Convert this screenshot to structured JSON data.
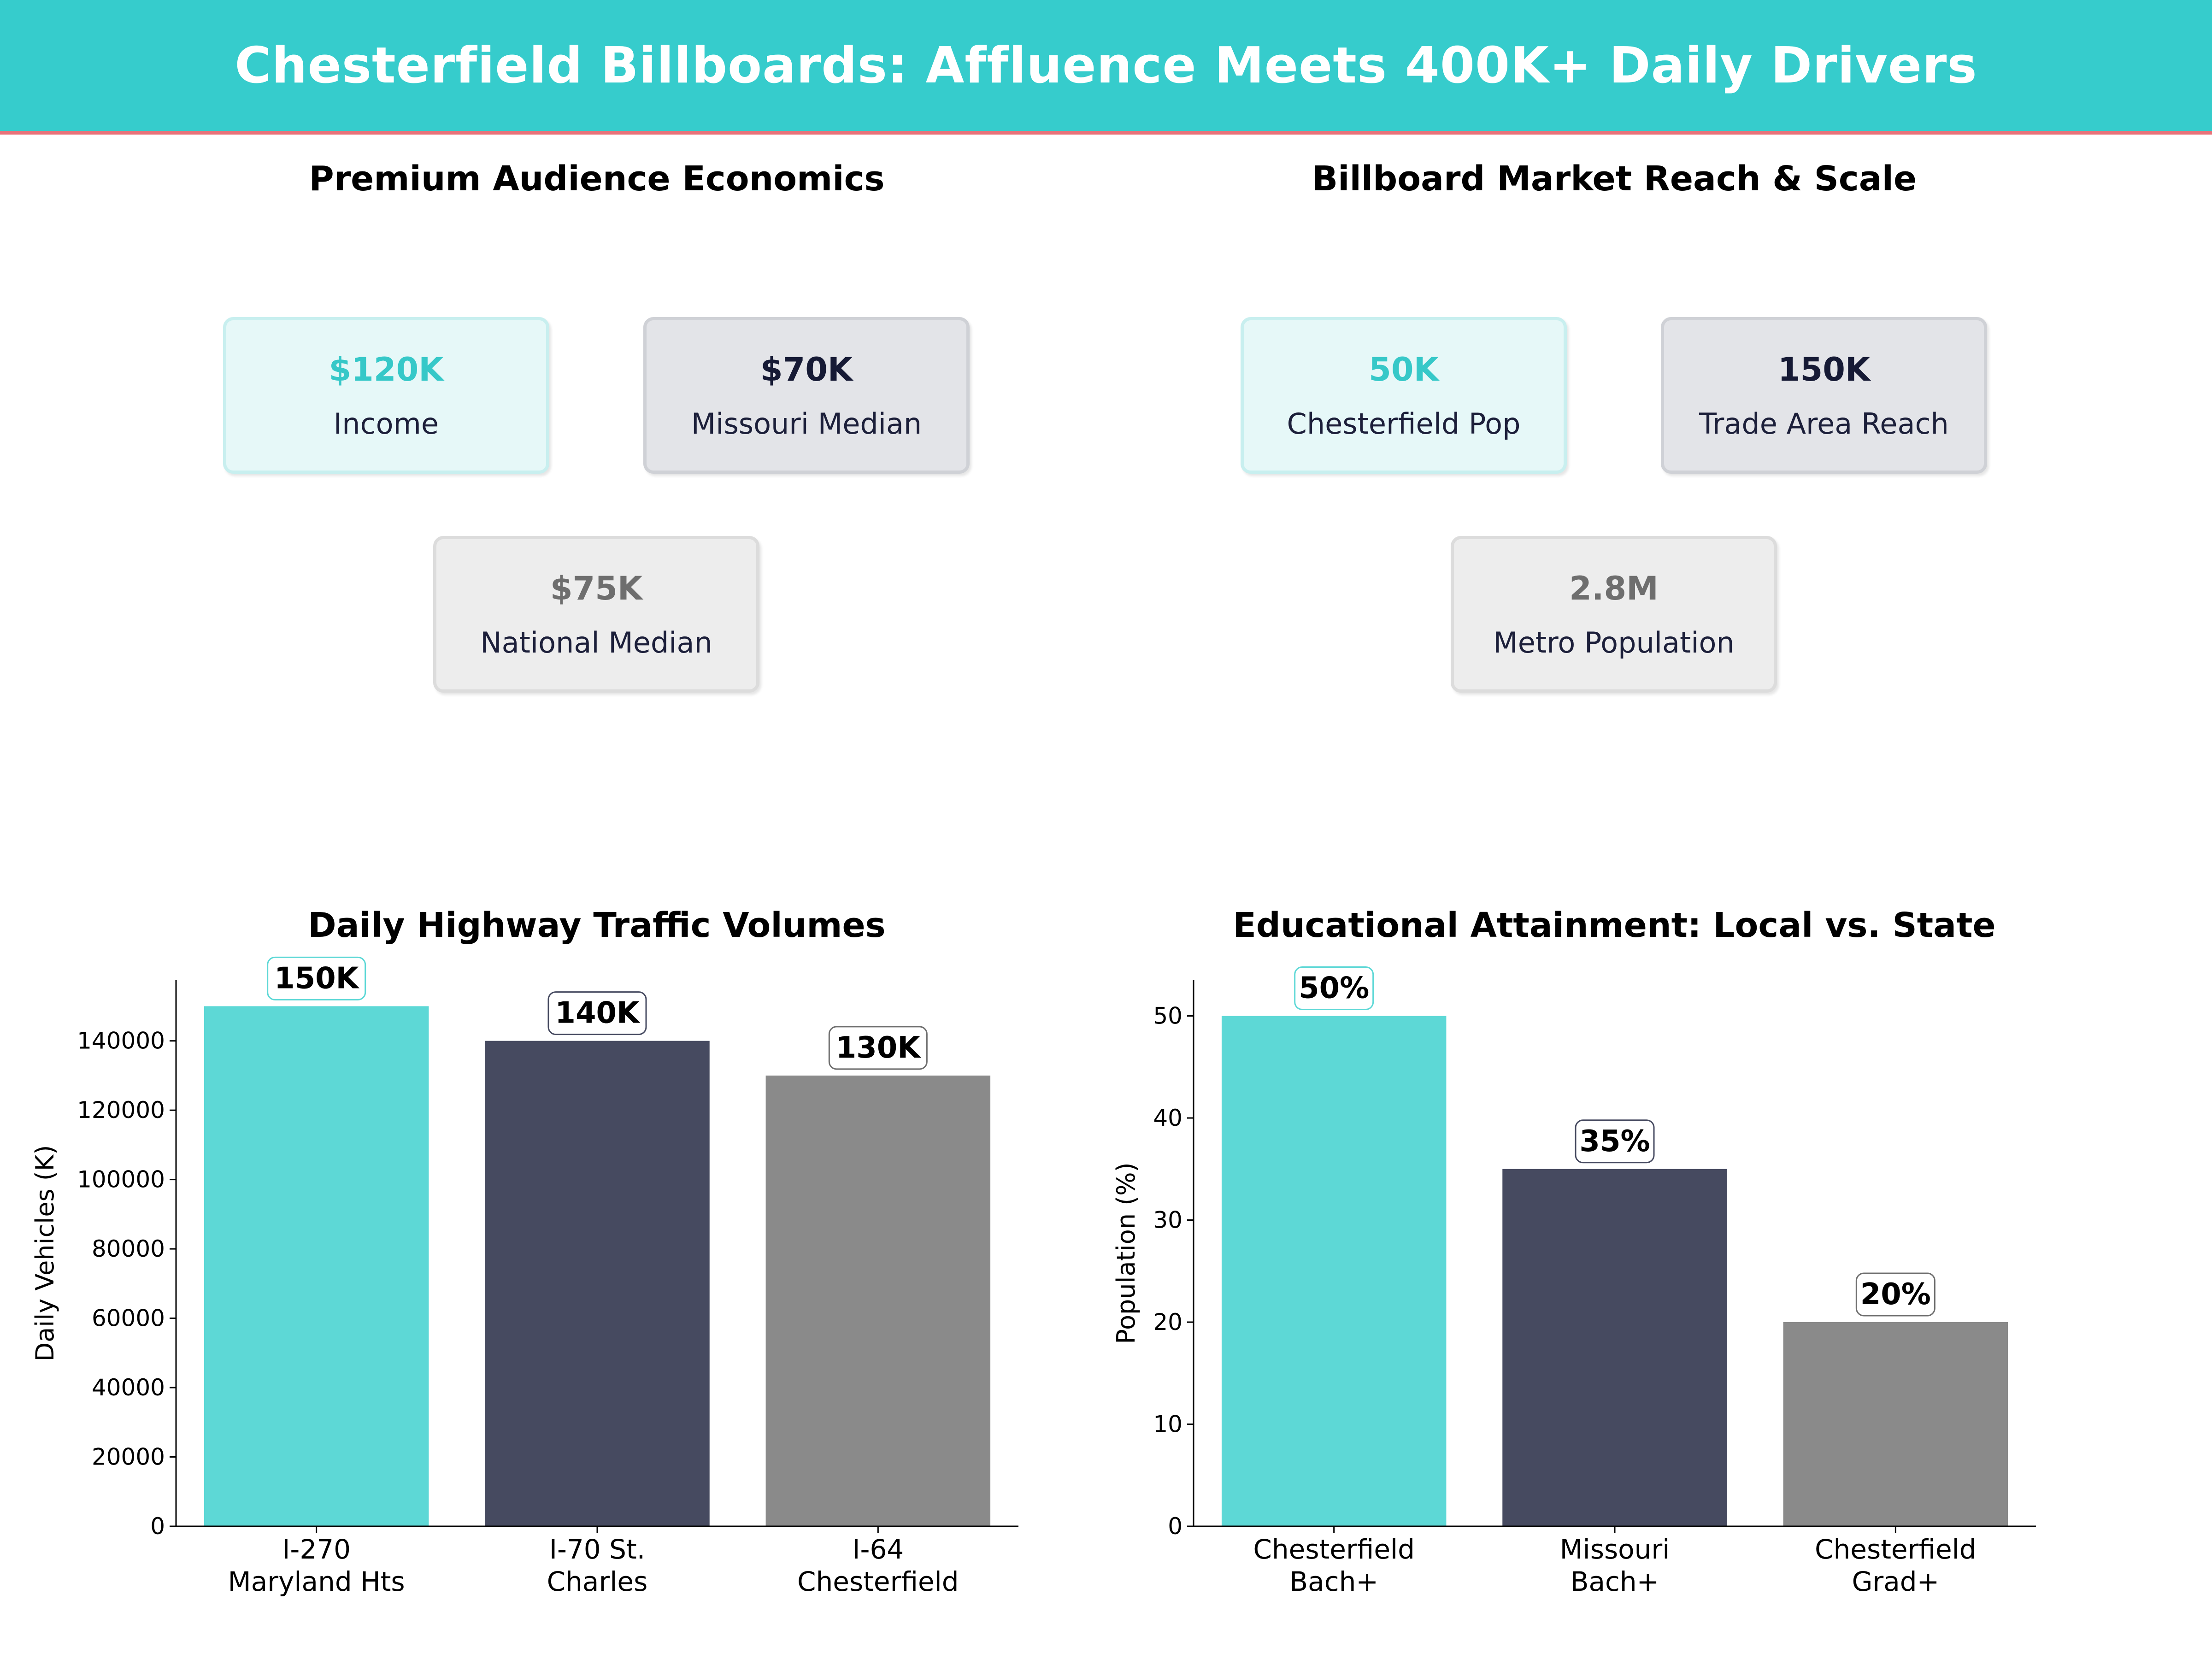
{
  "header": {
    "title": "Chesterfield Billboards: Affluence Meets 400K+ Daily Drivers"
  },
  "colors": {
    "teal": "#5dd8d6",
    "navy": "#464a60",
    "gray": "#8a8a8a",
    "banner": "#36cccc",
    "accent_line": "#e8737a"
  },
  "economics": {
    "title": "Premium Audience Economics",
    "cards": [
      {
        "value": "$120K",
        "label": "Income"
      },
      {
        "value": "$70K",
        "label": "Missouri Median"
      },
      {
        "value": "$75K",
        "label": "National Median"
      }
    ]
  },
  "reach": {
    "title": "Billboard Market Reach & Scale",
    "cards": [
      {
        "value": "50K",
        "label": "Chesterfield Pop"
      },
      {
        "value": "150K",
        "label": "Trade Area Reach"
      },
      {
        "value": "2.8M",
        "label": "Metro Population"
      }
    ]
  },
  "chart_data": [
    {
      "type": "bar",
      "title": "Daily Highway Traffic Volumes",
      "xlabel": "",
      "ylabel": "Daily Vehicles (K)",
      "categories": [
        [
          "I-270",
          "Maryland Hts"
        ],
        [
          "I-70 St.",
          "Charles"
        ],
        [
          "I-64",
          "Chesterfield"
        ]
      ],
      "values": [
        150000,
        140000,
        130000
      ],
      "data_labels": [
        "150K",
        "140K",
        "130K"
      ],
      "yticks": [
        0,
        20000,
        40000,
        60000,
        80000,
        100000,
        120000,
        140000
      ],
      "ylim": [
        0,
        157500
      ],
      "colors": [
        "#5dd8d6",
        "#464a60",
        "#8a8a8a"
      ]
    },
    {
      "type": "bar",
      "title": "Educational Attainment: Local vs. State",
      "xlabel": "",
      "ylabel": "Population (%)",
      "categories": [
        [
          "Chesterfield",
          "Bach+"
        ],
        [
          "Missouri",
          "Bach+"
        ],
        [
          "Chesterfield",
          "Grad+"
        ]
      ],
      "values": [
        50,
        35,
        20
      ],
      "data_labels": [
        "50%",
        "35%",
        "20%"
      ],
      "yticks": [
        0,
        10,
        20,
        30,
        40,
        50
      ],
      "ylim": [
        0,
        53.5
      ],
      "colors": [
        "#5dd8d6",
        "#464a60",
        "#8a8a8a"
      ]
    }
  ]
}
